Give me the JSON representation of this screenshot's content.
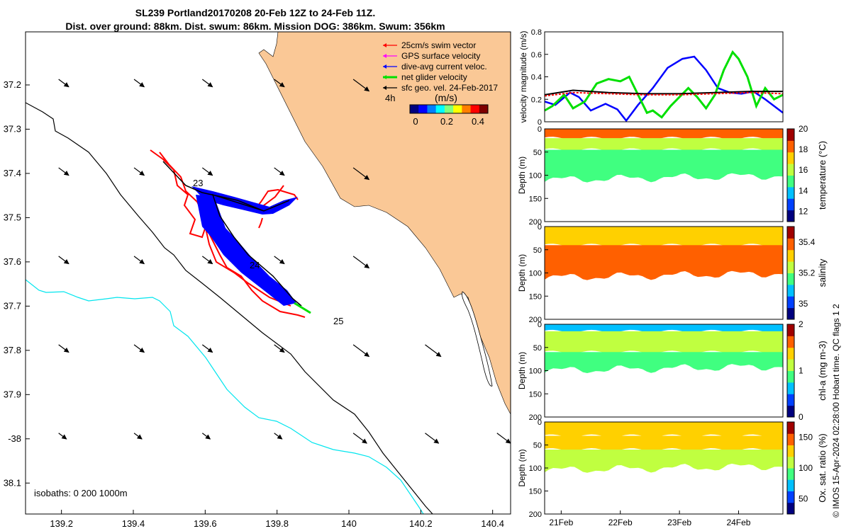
{
  "title_line1": "SL239 Portland20170208 20-Feb 12Z to 24-Feb 11Z.",
  "title_line2": "Dist. over ground: 88km. Dist. swum: 86km. Mission DOG: 386km. Swum: 356km",
  "credit": "© IMOS 15-Apr-2024 02:28:00 Hobart time. QC flags 1  2",
  "colors": {
    "land": "#FAC896",
    "isobath_shallow": "#000000",
    "isobath_deep": "#00E5EE",
    "swim_vector": "#FF0000",
    "gps_velocity": "#FF00FF",
    "current": "#0000FF",
    "net_velocity": "#00E000",
    "geo_velocity": "#000000"
  },
  "chart_data": [
    {
      "type": "map",
      "xlabel": "",
      "ylabel": "",
      "xlim": [
        139.1,
        140.45
      ],
      "ylim": [
        -38.17,
        -37.08
      ],
      "x_ticks": [
        139.2,
        139.4,
        139.6,
        139.8,
        140,
        140.2,
        140.4
      ],
      "x_tick_labels": [
        "139.2",
        "139.4",
        "139.6",
        "139.8",
        "140",
        "140.2",
        "140.4"
      ],
      "y_ticks": [
        -37.2,
        -37.3,
        -37.4,
        -37.5,
        -37.6,
        -37.7,
        -37.8,
        -37.9,
        -38,
        -38.1
      ],
      "y_tick_labels": [
        "37.2",
        "37.3",
        "37.4",
        "37.5",
        "37.6",
        "37.7",
        "37.8",
        "37.9",
        "-38",
        "38.1"
      ],
      "legend_position": "top-right",
      "legend": [
        {
          "label": "25cm/s swim vector",
          "color": "#FF0000"
        },
        {
          "label": "GPS surface velocity",
          "color": "#FF00FF"
        },
        {
          "label": "dive-avg current veloc.",
          "color": "#0000FF"
        },
        {
          "label": "net glider velocity",
          "color": "#00E000"
        },
        {
          "label": "sfc geo. vel. 24-Feb-2017",
          "color": "#000000"
        }
      ],
      "interval_label": "4h",
      "colorbar_label": "(m/s)",
      "colorbar_ticks": [
        "0",
        "0.2",
        "0.4"
      ],
      "day_labels": [
        {
          "text": "23",
          "lon": 139.59,
          "lat": -37.465
        },
        {
          "text": "24",
          "lon": 139.72,
          "lat": -37.62
        },
        {
          "text": "25",
          "lon": 139.96,
          "lat": -37.745
        }
      ],
      "isobath_caption": "isobaths: 0   200  1000m",
      "glider_track": [
        [
          139.48,
          -37.39
        ],
        [
          139.545,
          -37.45
        ],
        [
          139.595,
          -37.48
        ],
        [
          139.69,
          -37.49
        ],
        [
          139.78,
          -37.5
        ],
        [
          139.87,
          -37.47
        ],
        [
          139.79,
          -37.5
        ],
        [
          139.6,
          -37.49
        ],
        [
          139.62,
          -37.54
        ],
        [
          139.7,
          -37.62
        ],
        [
          139.76,
          -37.66
        ],
        [
          139.85,
          -37.71
        ],
        [
          139.88,
          -37.73
        ]
      ]
    },
    {
      "type": "line",
      "xlabel": "",
      "ylabel": "velocity magnitude (m/s)",
      "xlim": [
        20.72,
        24.75
      ],
      "ylim": [
        0,
        0.8
      ],
      "y_tick_labels": [
        "0",
        "0.2",
        "0.4",
        "0.6",
        "0.8"
      ],
      "series": [
        {
          "color": "#0000FF",
          "x": [
            20.72,
            20.9,
            21.15,
            21.3,
            21.5,
            21.75,
            21.95,
            22.1,
            22.3,
            22.55,
            22.8,
            23.05,
            23.25,
            23.45,
            23.65,
            23.85,
            24.05,
            24.25,
            24.45,
            24.6,
            24.75
          ],
          "values": [
            0.18,
            0.15,
            0.26,
            0.22,
            0.1,
            0.16,
            0.11,
            0.01,
            0.15,
            0.3,
            0.48,
            0.56,
            0.58,
            0.46,
            0.3,
            0.26,
            0.25,
            0.27,
            0.2,
            0.14,
            0.08
          ]
        },
        {
          "color": "#00E000",
          "x": [
            20.72,
            20.85,
            21.05,
            21.2,
            21.4,
            21.6,
            21.8,
            22.0,
            22.15,
            22.3,
            22.45,
            22.55,
            22.7,
            22.85,
            23.0,
            23.15,
            23.3,
            23.45,
            23.6,
            23.75,
            23.9,
            24.0,
            24.15,
            24.3,
            24.45,
            24.6,
            24.75
          ],
          "values": [
            0.1,
            0.14,
            0.24,
            0.12,
            0.18,
            0.34,
            0.38,
            0.36,
            0.4,
            0.24,
            0.08,
            0.1,
            0.04,
            0.14,
            0.22,
            0.3,
            0.22,
            0.12,
            0.24,
            0.46,
            0.62,
            0.56,
            0.4,
            0.14,
            0.3,
            0.2,
            0.24
          ]
        },
        {
          "color": "#000000",
          "x": [
            20.72,
            21.2,
            21.8,
            22.4,
            23.0,
            23.6,
            24.2,
            24.75
          ],
          "values": [
            0.24,
            0.28,
            0.26,
            0.25,
            0.25,
            0.26,
            0.27,
            0.27
          ]
        },
        {
          "color": "#FF0000",
          "x": [
            20.72,
            21.2,
            21.8,
            22.4,
            23.0,
            23.6,
            24.2,
            24.75
          ],
          "values": [
            0.23,
            0.26,
            0.25,
            0.24,
            0.24,
            0.25,
            0.26,
            0.25
          ]
        }
      ]
    },
    {
      "type": "heatmap",
      "xlabel": "",
      "ylabel": "Depth (m)",
      "ylim": [
        0,
        200
      ],
      "y_tick_labels": [
        "0",
        "50",
        "100",
        "150",
        "200"
      ],
      "colorbar_label": "temperature (°C)",
      "colorbar_range": [
        11,
        20
      ],
      "colorbar_ticks": [
        "12",
        "14",
        "16",
        "18",
        "20"
      ],
      "bands": [
        {
          "depth_top": 0,
          "depth_bottom": 20,
          "value": 18.5
        },
        {
          "depth_top": 20,
          "depth_bottom": 45,
          "value": 16
        },
        {
          "depth_top": 45,
          "depth_bottom": 110,
          "value": 14.8
        }
      ]
    },
    {
      "type": "heatmap",
      "xlabel": "",
      "ylabel": "Depth (m)",
      "ylim": [
        0,
        200
      ],
      "y_tick_labels": [
        "0",
        "50",
        "100",
        "150",
        "200"
      ],
      "colorbar_label": "salinity",
      "colorbar_range": [
        34.9,
        35.5
      ],
      "colorbar_ticks": [
        "35",
        "35.2",
        "35.4"
      ],
      "bands": [
        {
          "depth_top": 0,
          "depth_bottom": 40,
          "value": 35.35
        },
        {
          "depth_top": 40,
          "depth_bottom": 110,
          "value": 35.4
        }
      ]
    },
    {
      "type": "heatmap",
      "xlabel": "",
      "ylabel": "Depth (m)",
      "ylim": [
        0,
        200
      ],
      "y_tick_labels": [
        "0",
        "50",
        "100",
        "150",
        "200"
      ],
      "colorbar_label": "chl-a (mg m-3)",
      "colorbar_range": [
        0,
        2
      ],
      "colorbar_ticks": [
        "0",
        "1",
        "2"
      ],
      "bands": [
        {
          "depth_top": 0,
          "depth_bottom": 15,
          "value": 0.6
        },
        {
          "depth_top": 15,
          "depth_bottom": 60,
          "value": 1.1
        },
        {
          "depth_top": 60,
          "depth_bottom": 100,
          "value": 0.8
        }
      ]
    },
    {
      "type": "heatmap",
      "xlabel": "",
      "ylabel": "Depth (m)",
      "ylim": [
        0,
        200
      ],
      "y_tick_labels": [
        "0",
        "50",
        "100",
        "150",
        "200"
      ],
      "x_tick_labels": [
        "21Feb",
        "22Feb",
        "23Feb",
        "24Feb"
      ],
      "colorbar_label": "Ox. sat. ratio (%)",
      "colorbar_range": [
        25,
        175
      ],
      "colorbar_ticks": [
        "50",
        "100",
        "150"
      ],
      "bands": [
        {
          "depth_top": 0,
          "depth_bottom": 30,
          "value": 140
        },
        {
          "depth_top": 30,
          "depth_bottom": 60,
          "value": 125
        },
        {
          "depth_top": 60,
          "depth_bottom": 105,
          "value": 112
        }
      ]
    }
  ]
}
